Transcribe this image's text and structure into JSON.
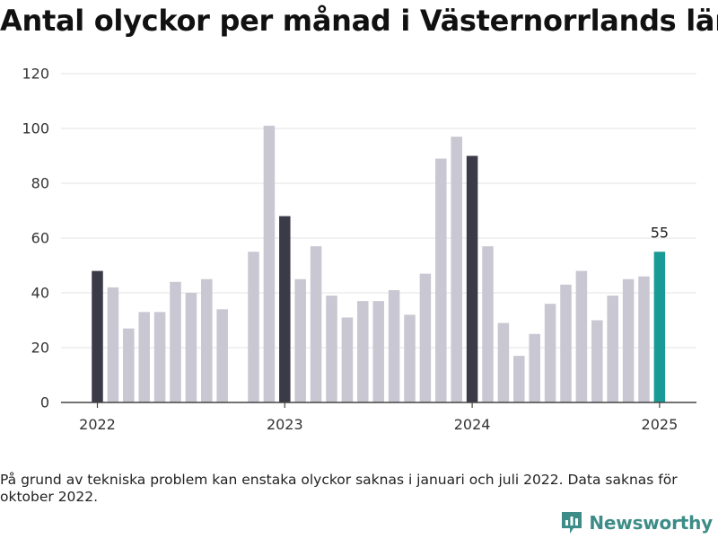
{
  "title": "Antal olyckor per månad i Västernorrlands län",
  "footnote": "På grund av tekniska problem kan enstaka olyckor saknas i januari och juli 2022. Data saknas för oktober 2022.",
  "brand": {
    "name": "Newsworthy",
    "icon": "bar-chart-logo-icon"
  },
  "colors": {
    "bar": "#c8c7d2",
    "january": "#3b3a48",
    "latest": "#1a9a94",
    "grid": "#e3e3e3",
    "axis": "#444444",
    "brand": "#3d8c87"
  },
  "chart_data": {
    "type": "bar",
    "title": "Antal olyckor per månad i Västernorrlands län",
    "xlabel": "",
    "ylabel": "",
    "ylim": [
      0,
      120
    ],
    "yticks": [
      0,
      20,
      40,
      60,
      80,
      100,
      120
    ],
    "xticks": [
      "2022",
      "2023",
      "2024",
      "2025"
    ],
    "grid": true,
    "legend": "none",
    "categories": [
      "2022-01",
      "2022-02",
      "2022-03",
      "2022-04",
      "2022-05",
      "2022-06",
      "2022-07",
      "2022-08",
      "2022-09",
      "2022-10",
      "2022-11",
      "2022-12",
      "2023-01",
      "2023-02",
      "2023-03",
      "2023-04",
      "2023-05",
      "2023-06",
      "2023-07",
      "2023-08",
      "2023-09",
      "2023-10",
      "2023-11",
      "2023-12",
      "2024-01",
      "2024-02",
      "2024-03",
      "2024-04",
      "2024-05",
      "2024-06",
      "2024-07",
      "2024-08",
      "2024-09",
      "2024-10",
      "2024-11",
      "2024-12",
      "2025-01"
    ],
    "values": [
      48,
      42,
      27,
      33,
      33,
      44,
      40,
      45,
      34,
      null,
      55,
      101,
      68,
      45,
      57,
      39,
      31,
      37,
      37,
      41,
      32,
      47,
      89,
      97,
      90,
      57,
      29,
      17,
      25,
      36,
      43,
      48,
      30,
      39,
      45,
      46,
      55
    ],
    "highlight_latest_label": "55"
  }
}
